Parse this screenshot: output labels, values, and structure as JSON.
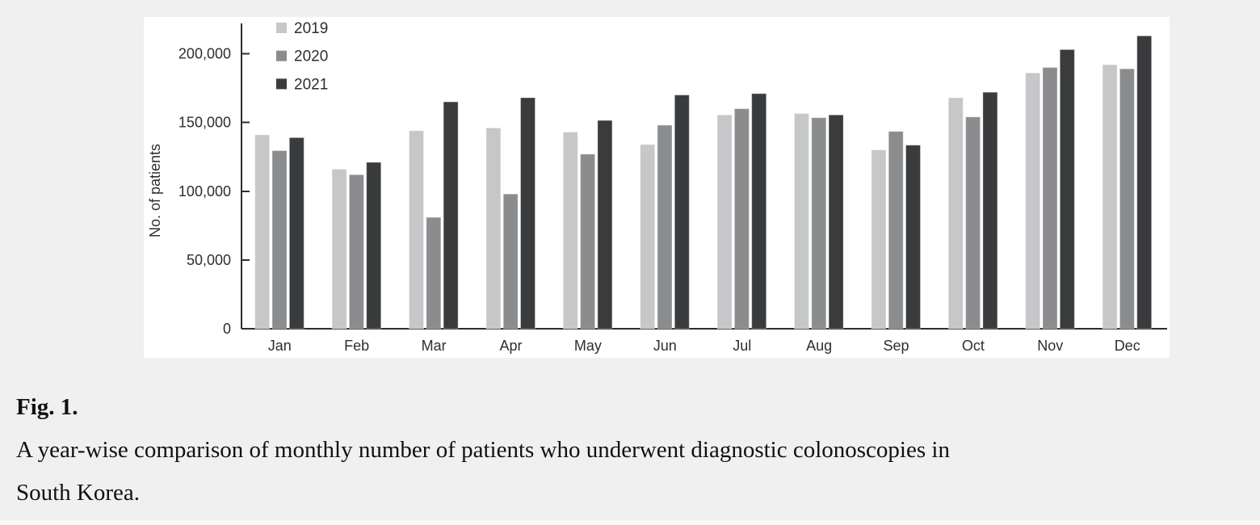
{
  "figure": {
    "label": "Fig. 1.",
    "caption_lines": [
      "A year-wise comparison of monthly number of patients who underwent diagnostic colonoscopies in",
      "South Korea."
    ]
  },
  "chart_data": {
    "type": "bar",
    "title": "",
    "xlabel": "",
    "ylabel": "No. of patients",
    "categories": [
      "Jan",
      "Feb",
      "Mar",
      "Apr",
      "May",
      "Jun",
      "Jul",
      "Aug",
      "Sep",
      "Oct",
      "Nov",
      "Dec"
    ],
    "series": [
      {
        "name": "2019",
        "color": "#c6c7c9",
        "values": [
          141000,
          116000,
          144000,
          146000,
          143000,
          134000,
          155500,
          156500,
          130000,
          168000,
          186000,
          192000
        ]
      },
      {
        "name": "2020",
        "color": "#8b8c8e",
        "values": [
          129500,
          112000,
          81000,
          98000,
          127000,
          148000,
          160000,
          153500,
          143500,
          154000,
          190000,
          189000
        ]
      },
      {
        "name": "2021",
        "color": "#3a3b3d",
        "values": [
          139000,
          121000,
          165000,
          168000,
          151500,
          170000,
          171000,
          155500,
          133500,
          172000,
          203000,
          213000
        ]
      }
    ],
    "ylim": [
      0,
      222000
    ],
    "yticks": [
      0,
      50000,
      100000,
      150000,
      200000
    ],
    "grid": false,
    "legend_position": "top-left",
    "colors": {
      "axis": "#2d2d2d",
      "text": "#2e2e2e",
      "panel_bg": "#ffffff",
      "page_bg": "#f0f0f1"
    }
  }
}
